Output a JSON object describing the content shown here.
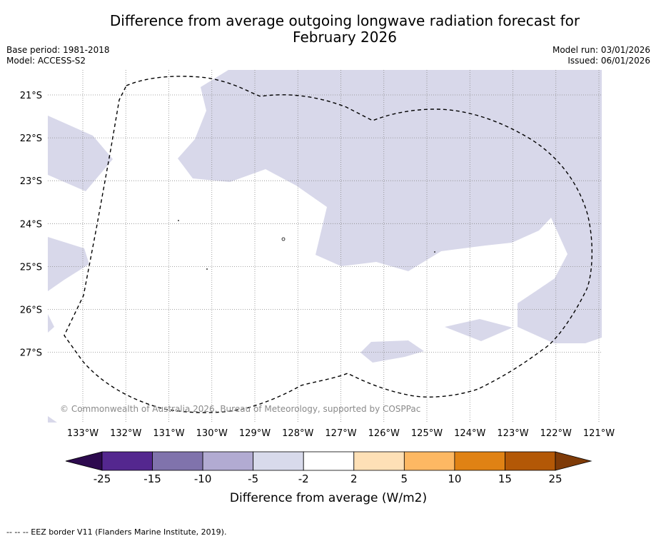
{
  "title_line1": "Difference from average outgoing longwave radiation forecast for",
  "title_line2": "February 2026",
  "meta": {
    "base_period": "Base period: 1981-2018",
    "model": "Model: ACCESS-S2",
    "model_run": "Model run: 03/01/2026",
    "issued": "Issued: 06/01/2026"
  },
  "map": {
    "lat_labels": [
      "21°S",
      "22°S",
      "23°S",
      "24°S",
      "25°S",
      "26°S",
      "27°S"
    ],
    "lon_labels": [
      "133°W",
      "132°W",
      "131°W",
      "130°W",
      "129°W",
      "128°W",
      "127°W",
      "126°W",
      "125°W",
      "124°W",
      "123°W",
      "122°W",
      "121°W"
    ],
    "copyright": "© Commonwealth of Australia 2026, Bureau of Meteorology, supported by COSPPac",
    "anomaly_fill_color": "#d8d8ea"
  },
  "colorbar": {
    "ticks": [
      "-25",
      "-15",
      "-10",
      "-5",
      "-2",
      "2",
      "5",
      "10",
      "15",
      "25"
    ],
    "colors": [
      "#2d0a4e",
      "#54278f",
      "#8073ac",
      "#b2abd2",
      "#d8daeb",
      "#ffffff",
      "#fee0b6",
      "#fdb863",
      "#e08214",
      "#b35806",
      "#7f3b08"
    ],
    "label": "Difference from average (W/m2)"
  },
  "footnote": "--  --  -- EEZ border V11 (Flanders Marine Institute, 2019)."
}
